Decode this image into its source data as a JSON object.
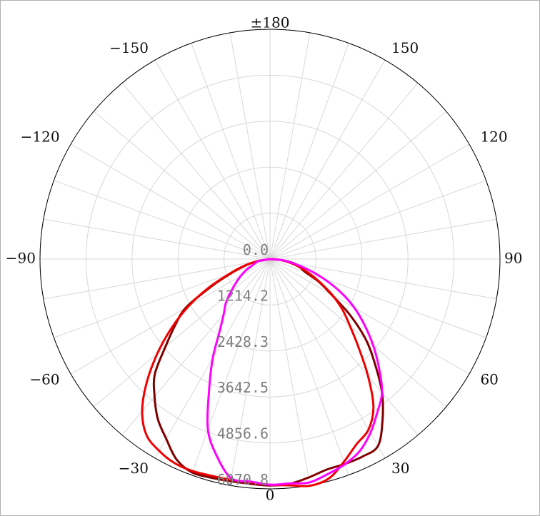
{
  "chart_data": {
    "type": "polar-line",
    "radial_ticks": [
      "0.0",
      "1214.2",
      "2428.3",
      "3642.5",
      "4856.6",
      "6070.8"
    ],
    "radial_tick_values": [
      0,
      1214.2,
      2428.3,
      3642.5,
      4856.6,
      6070.8
    ],
    "rmax": 6070.8,
    "angle_labels": [
      {
        "angle": 180,
        "text": "±180"
      },
      {
        "angle": 150,
        "text": "150"
      },
      {
        "angle": -150,
        "text": "−150"
      },
      {
        "angle": 120,
        "text": "120"
      },
      {
        "angle": -120,
        "text": "−120"
      },
      {
        "angle": 90,
        "text": "90"
      },
      {
        "angle": -90,
        "text": "−90"
      },
      {
        "angle": 60,
        "text": "60"
      },
      {
        "angle": -60,
        "text": "−60"
      },
      {
        "angle": 30,
        "text": "30"
      },
      {
        "angle": -30,
        "text": "−30"
      },
      {
        "angle": 0,
        "text": "0"
      }
    ],
    "angle_grid_step": 10,
    "series": [
      {
        "color": "#800000",
        "points": [
          [
            -90,
            0
          ],
          [
            -80,
            360
          ],
          [
            -75,
            690
          ],
          [
            -70,
            1090
          ],
          [
            -65,
            1700
          ],
          [
            -60,
            2560
          ],
          [
            -55,
            3060
          ],
          [
            -50,
            3600
          ],
          [
            -45,
            4300
          ],
          [
            -40,
            4740
          ],
          [
            -35,
            5160
          ],
          [
            -30,
            5480
          ],
          [
            -25,
            5840
          ],
          [
            -20,
            6000
          ],
          [
            -15,
            5980
          ],
          [
            -10,
            5960
          ],
          [
            -5,
            5960
          ],
          [
            0,
            5980
          ],
          [
            5,
            5960
          ],
          [
            10,
            5860
          ],
          [
            15,
            5760
          ],
          [
            20,
            5760
          ],
          [
            25,
            5760
          ],
          [
            30,
            5700
          ],
          [
            35,
            5180
          ],
          [
            40,
            4600
          ],
          [
            45,
            3920
          ],
          [
            50,
            3300
          ],
          [
            55,
            2580
          ],
          [
            60,
            1870
          ],
          [
            65,
            1420
          ],
          [
            70,
            980
          ],
          [
            75,
            810
          ],
          [
            80,
            640
          ],
          [
            85,
            300
          ],
          [
            90,
            0
          ]
        ]
      },
      {
        "color": "#ee0000",
        "points": [
          [
            -90,
            0
          ],
          [
            -80,
            360
          ],
          [
            -75,
            740
          ],
          [
            -70,
            1140
          ],
          [
            -65,
            1780
          ],
          [
            -60,
            2480
          ],
          [
            -55,
            3170
          ],
          [
            -50,
            3880
          ],
          [
            -45,
            4600
          ],
          [
            -40,
            5250
          ],
          [
            -35,
            5680
          ],
          [
            -30,
            5850
          ],
          [
            -25,
            5950
          ],
          [
            -20,
            5960
          ],
          [
            -15,
            5930
          ],
          [
            -10,
            5920
          ],
          [
            -5,
            5920
          ],
          [
            0,
            5960
          ],
          [
            5,
            6000
          ],
          [
            10,
            6080
          ],
          [
            15,
            6000
          ],
          [
            20,
            5700
          ],
          [
            25,
            5400
          ],
          [
            30,
            5200
          ],
          [
            35,
            4760
          ],
          [
            40,
            4020
          ],
          [
            45,
            3310
          ],
          [
            50,
            2760
          ],
          [
            55,
            2340
          ],
          [
            60,
            1900
          ],
          [
            65,
            1460
          ],
          [
            70,
            1100
          ],
          [
            75,
            800
          ],
          [
            80,
            530
          ],
          [
            85,
            260
          ],
          [
            90,
            0
          ]
        ]
      },
      {
        "color": "#ff00ff",
        "points": [
          [
            -90,
            0
          ],
          [
            -80,
            300
          ],
          [
            -75,
            400
          ],
          [
            -70,
            500
          ],
          [
            -65,
            700
          ],
          [
            -60,
            890
          ],
          [
            -55,
            1100
          ],
          [
            -50,
            1350
          ],
          [
            -45,
            1650
          ],
          [
            -40,
            1900
          ],
          [
            -35,
            2310
          ],
          [
            -30,
            3020
          ],
          [
            -25,
            3800
          ],
          [
            -20,
            4790
          ],
          [
            -15,
            5400
          ],
          [
            -10,
            5880
          ],
          [
            -5,
            5900
          ],
          [
            0,
            5960
          ],
          [
            5,
            5950
          ],
          [
            10,
            5990
          ],
          [
            15,
            5880
          ],
          [
            20,
            5770
          ],
          [
            25,
            5600
          ],
          [
            30,
            5300
          ],
          [
            35,
            4940
          ],
          [
            40,
            4600
          ],
          [
            45,
            4070
          ],
          [
            50,
            3560
          ],
          [
            55,
            3050
          ],
          [
            60,
            2570
          ],
          [
            65,
            2050
          ],
          [
            70,
            1500
          ],
          [
            75,
            1000
          ],
          [
            80,
            600
          ],
          [
            85,
            300
          ],
          [
            90,
            0
          ]
        ]
      }
    ]
  }
}
